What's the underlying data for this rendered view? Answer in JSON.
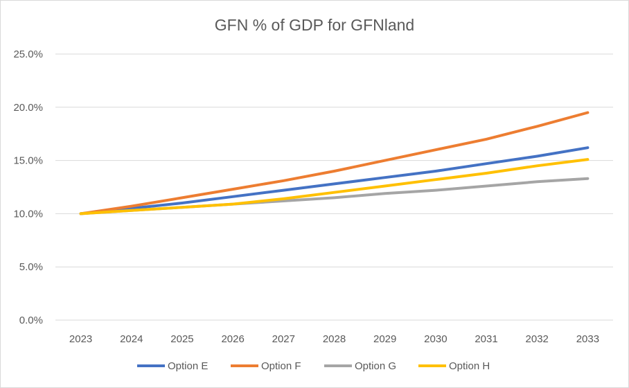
{
  "chart_data": {
    "type": "line",
    "title": "GFN % of GDP for GFNland",
    "xlabel": "",
    "ylabel": "",
    "x": [
      "2023",
      "2024",
      "2025",
      "2026",
      "2027",
      "2028",
      "2029",
      "2030",
      "2031",
      "2032",
      "2033"
    ],
    "ylim": [
      0,
      25
    ],
    "y_ticks": [
      "0.0%",
      "5.0%",
      "10.0%",
      "15.0%",
      "20.0%",
      "25.0%"
    ],
    "grid": true,
    "legend_position": "bottom",
    "series": [
      {
        "name": "Option E",
        "color": "#4472C4",
        "values": [
          10.0,
          10.5,
          11.0,
          11.6,
          12.2,
          12.8,
          13.4,
          14.0,
          14.7,
          15.4,
          16.2
        ]
      },
      {
        "name": "Option F",
        "color": "#ED7D31",
        "values": [
          10.0,
          10.7,
          11.5,
          12.3,
          13.1,
          14.0,
          15.0,
          16.0,
          17.0,
          18.2,
          19.5
        ]
      },
      {
        "name": "Option G",
        "color": "#A5A5A5",
        "values": [
          10.0,
          10.3,
          10.6,
          10.9,
          11.2,
          11.5,
          11.9,
          12.2,
          12.6,
          13.0,
          13.3
        ]
      },
      {
        "name": "Option H",
        "color": "#FFC000",
        "values": [
          10.0,
          10.3,
          10.6,
          10.9,
          11.4,
          12.0,
          12.6,
          13.2,
          13.8,
          14.5,
          15.1
        ]
      }
    ]
  }
}
